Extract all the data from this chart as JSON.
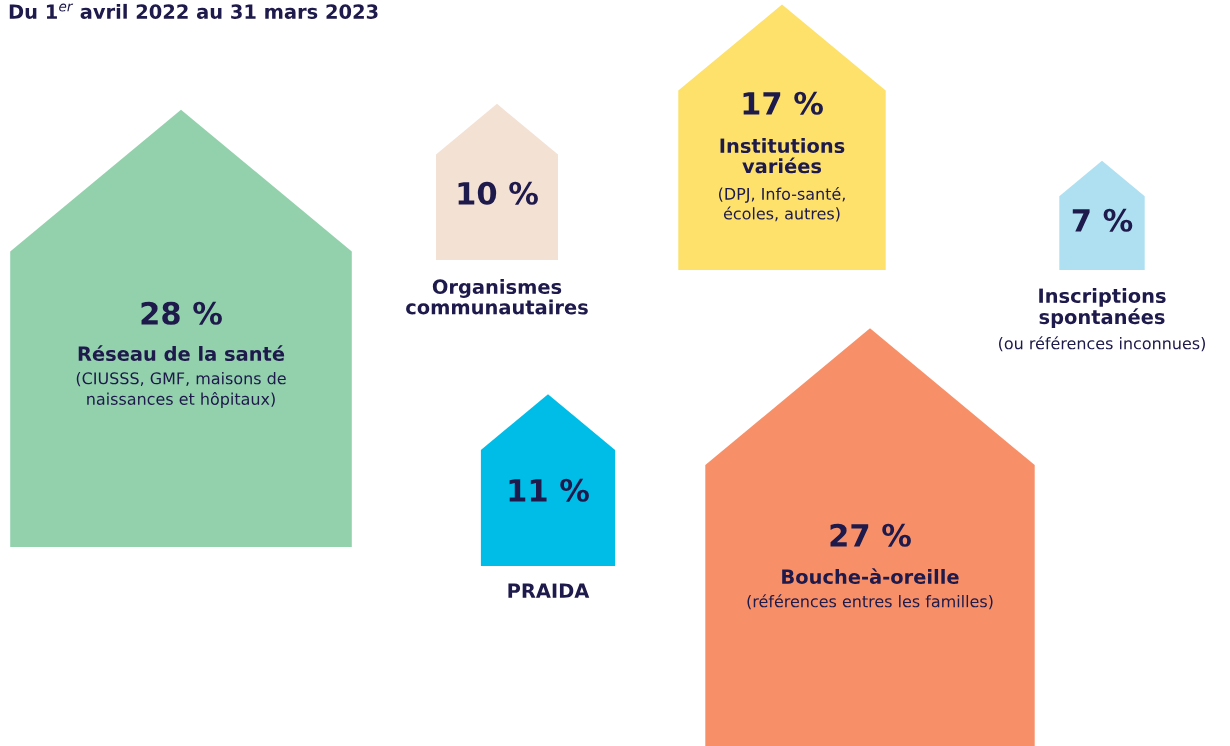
{
  "chart_data": {
    "type": "other",
    "title": "Du 1$^{er}$ avril 2022 au 31 mars 2023",
    "categories": [
      "Réseau de la santé",
      "Organismes\ncommunautaires",
      "PRAIDA",
      "Institutions\nvariées",
      "Bouche-à-oreille",
      "Inscriptions\nspontanées"
    ],
    "values": [
      28,
      10,
      11,
      17,
      27,
      7
    ],
    "value_labels": [
      "28 %",
      "10 %",
      "11 %",
      "17 %",
      "27 %",
      "7 %"
    ],
    "colors": [
      "#93d1ad",
      "#f3e1d4",
      "#00bde8",
      "#fde16b",
      "#f79068",
      "#aee0f2"
    ],
    "annotations": [
      {
        "text": "(CIUSSS, GMF, maisons de\nnaissances et hôpitaux)",
        "x": "Réseau de la santé"
      },
      {
        "text": "(DPJ, Info-santé,\nécoles, autres)",
        "x": "Institutions\nvariées"
      },
      {
        "text": "(références entres les familles)",
        "x": "Bouche-à-oreille"
      },
      {
        "text": "(ou références inconnues)",
        "x": "Inscriptions\nspontanées"
      }
    ]
  }
}
